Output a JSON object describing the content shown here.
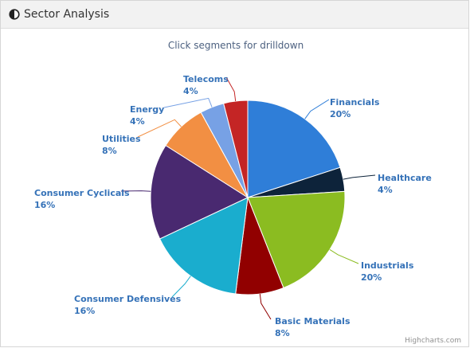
{
  "panel": {
    "title": "Sector Analysis",
    "icon": "contrast-half-circle-icon"
  },
  "chart_data": {
    "type": "pie",
    "title": "",
    "subtitle": "Click segments for drilldown",
    "slices": [
      {
        "name": "Financials",
        "value": 20,
        "label_value": "20%",
        "color": "#2f7ed8"
      },
      {
        "name": "Healthcare",
        "value": 4,
        "label_value": "4%",
        "color": "#0d233a"
      },
      {
        "name": "Industrials",
        "value": 20,
        "label_value": "20%",
        "color": "#8bbc21"
      },
      {
        "name": "Basic Materials",
        "value": 8,
        "label_value": "8%",
        "color": "#910000"
      },
      {
        "name": "Consumer Defensives",
        "value": 16,
        "label_value": "16%",
        "color": "#1aadce"
      },
      {
        "name": "Consumer Cyclicals",
        "value": 16,
        "label_value": "16%",
        "color": "#492970"
      },
      {
        "name": "Utilities",
        "value": 8,
        "label_value": "8%",
        "color": "#f28f43"
      },
      {
        "name": "Energy",
        "value": 4,
        "label_value": "4%",
        "color": "#77a1e5"
      },
      {
        "name": "Telecoms",
        "value": 4,
        "label_value": "4%",
        "color": "#c42525"
      }
    ],
    "label_color": "#3572b8",
    "credits": "Highcharts.com"
  }
}
